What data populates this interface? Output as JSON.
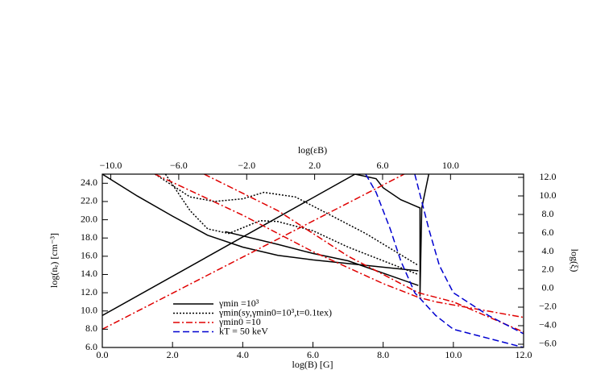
{
  "chart_data": {
    "type": "line",
    "xlabel": "log(B) [G]",
    "ylabel": "log(nₑ) [cm⁻³]",
    "x2label": "log(εB)",
    "y2label": "log(ξ)",
    "xlim": [
      0,
      12
    ],
    "ylim": [
      6,
      25
    ],
    "x2lim": [
      -10.5,
      14.3
    ],
    "y2lim": [
      -6.35,
      12.35
    ],
    "xticks": [
      {
        "value": 0,
        "label": "0.0"
      },
      {
        "value": 2,
        "label": "2.0"
      },
      {
        "value": 4,
        "label": "4.0"
      },
      {
        "value": 6,
        "label": "6.0"
      },
      {
        "value": 8,
        "label": "8.0"
      },
      {
        "value": 10,
        "label": "10.0"
      },
      {
        "value": 12,
        "label": "12.0"
      }
    ],
    "yticks": [
      {
        "value": 6,
        "label": "6.0"
      },
      {
        "value": 8,
        "label": "8.0"
      },
      {
        "value": 10,
        "label": "10.0"
      },
      {
        "value": 12,
        "label": "12.0"
      },
      {
        "value": 14,
        "label": "14.0"
      },
      {
        "value": 16,
        "label": "16.0"
      },
      {
        "value": 18,
        "label": "18.0"
      },
      {
        "value": 20,
        "label": "20.0"
      },
      {
        "value": 22,
        "label": "22.0"
      },
      {
        "value": 24,
        "label": "24.0"
      }
    ],
    "x2ticks": [
      {
        "value": -10,
        "label": "−10.0"
      },
      {
        "value": -6,
        "label": "−6.0"
      },
      {
        "value": -2,
        "label": "−2.0"
      },
      {
        "value": 2,
        "label": "2.0"
      },
      {
        "value": 6,
        "label": "6.0"
      },
      {
        "value": 10,
        "label": "10.0"
      }
    ],
    "y2ticks": [
      {
        "value": -6,
        "label": "−6.0"
      },
      {
        "value": -4,
        "label": "−4.0"
      },
      {
        "value": -2,
        "label": "−2.0"
      },
      {
        "value": 0,
        "label": "0.0"
      },
      {
        "value": 2,
        "label": "2.0"
      },
      {
        "value": 4,
        "label": "4.0"
      },
      {
        "value": 6,
        "label": "6.0"
      },
      {
        "value": 8,
        "label": "8.0"
      },
      {
        "value": 10,
        "label": "10.0"
      },
      {
        "value": 12,
        "label": "12.0"
      }
    ],
    "series": [
      {
        "name": "γmin =10³",
        "color": "#000000",
        "style": "solid",
        "x": [
          0,
          7.2,
          null,
          0,
          1,
          2,
          3,
          4,
          5,
          6,
          7,
          9,
          null,
          3.5,
          5,
          6,
          7,
          9,
          null,
          7.2,
          7.8,
          8,
          8.5,
          9.05,
          9.05,
          9.1,
          9.3
        ],
        "values": [
          9.5,
          25,
          null,
          25,
          22.6,
          20.4,
          18.3,
          17,
          16.1,
          15.6,
          15.2,
          14.4,
          null,
          18.7,
          17.3,
          16.3,
          15.5,
          12.8,
          null,
          25,
          24.5,
          23.5,
          22.2,
          21.3,
          11.6,
          21.3,
          25
        ]
      },
      {
        "name": "γmin(sy,γmin0=10³,t=0.1tex)",
        "color": "#000000",
        "style": "dotted",
        "x": [
          1.5,
          2.5,
          3.2,
          4,
          4.6,
          5.5,
          6.5,
          7.5,
          9,
          null,
          1.8,
          2.5,
          3,
          3.6,
          4.5,
          5,
          6,
          7,
          8,
          9
        ],
        "values": [
          25,
          22.5,
          22,
          22.3,
          23,
          22.5,
          20.5,
          18.5,
          15,
          null,
          25,
          21,
          19,
          18.5,
          19.9,
          19.8,
          18.8,
          17,
          15.5,
          14
        ]
      },
      {
        "name": "γmin0 =10",
        "color": "#e00000",
        "style": "dashdot",
        "x": [
          0,
          8.6,
          null,
          1.5,
          4,
          6,
          8,
          9,
          9.5,
          12,
          null,
          2.9,
          5,
          7,
          9,
          10,
          12
        ],
        "values": [
          8,
          25,
          null,
          25,
          20.5,
          16.5,
          13,
          11.5,
          11,
          9.3,
          null,
          25,
          21,
          16,
          12,
          11,
          7.7
        ]
      },
      {
        "name": "kT = 50 keV",
        "color": "#0000d0",
        "style": "dashed",
        "x": [
          7.5,
          7.8,
          8.2,
          8.5,
          8.9,
          9.5,
          10,
          11,
          12,
          null,
          8.9,
          9.1,
          9.3,
          9.6,
          10,
          11,
          12
        ],
        "values": [
          25,
          23,
          19,
          15.5,
          12,
          9.5,
          8,
          7,
          6,
          null,
          25,
          22,
          19,
          15,
          12,
          9.5,
          7.5
        ]
      }
    ]
  }
}
